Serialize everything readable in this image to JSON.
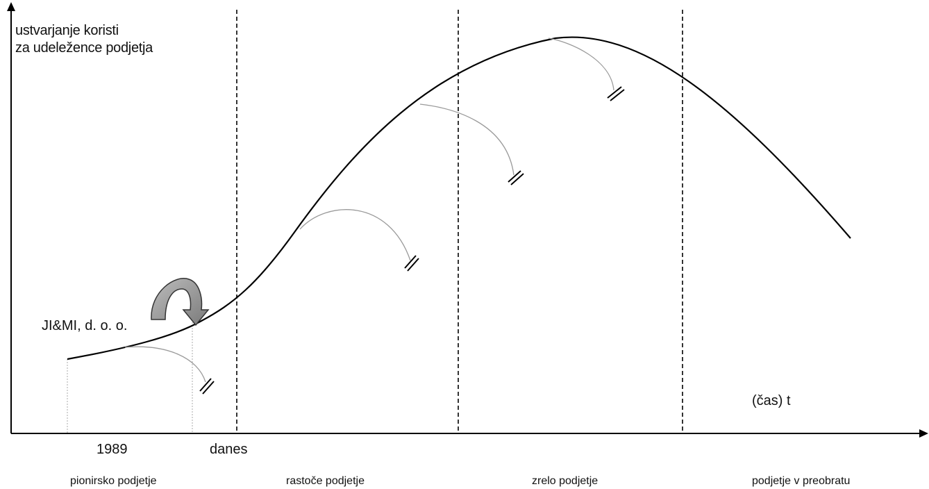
{
  "diagram": {
    "y_axis_label_line1": "ustvarjanje koristi",
    "y_axis_label_line2": "za udeležence podjetja",
    "x_axis_label": "(čas) t",
    "company_label": "JI&MI, d. o. o.",
    "x_ticks": [
      "1989",
      "danes"
    ],
    "phases": [
      "pionirsko podjetje",
      "rastoče podjetje",
      "zrelo podjetje",
      "podjetje v  preobratu"
    ],
    "colors": {
      "line": "#000000",
      "branch": "#9a9a9a",
      "arrow_fill": "#8c8c8c",
      "background": "#ffffff"
    }
  }
}
